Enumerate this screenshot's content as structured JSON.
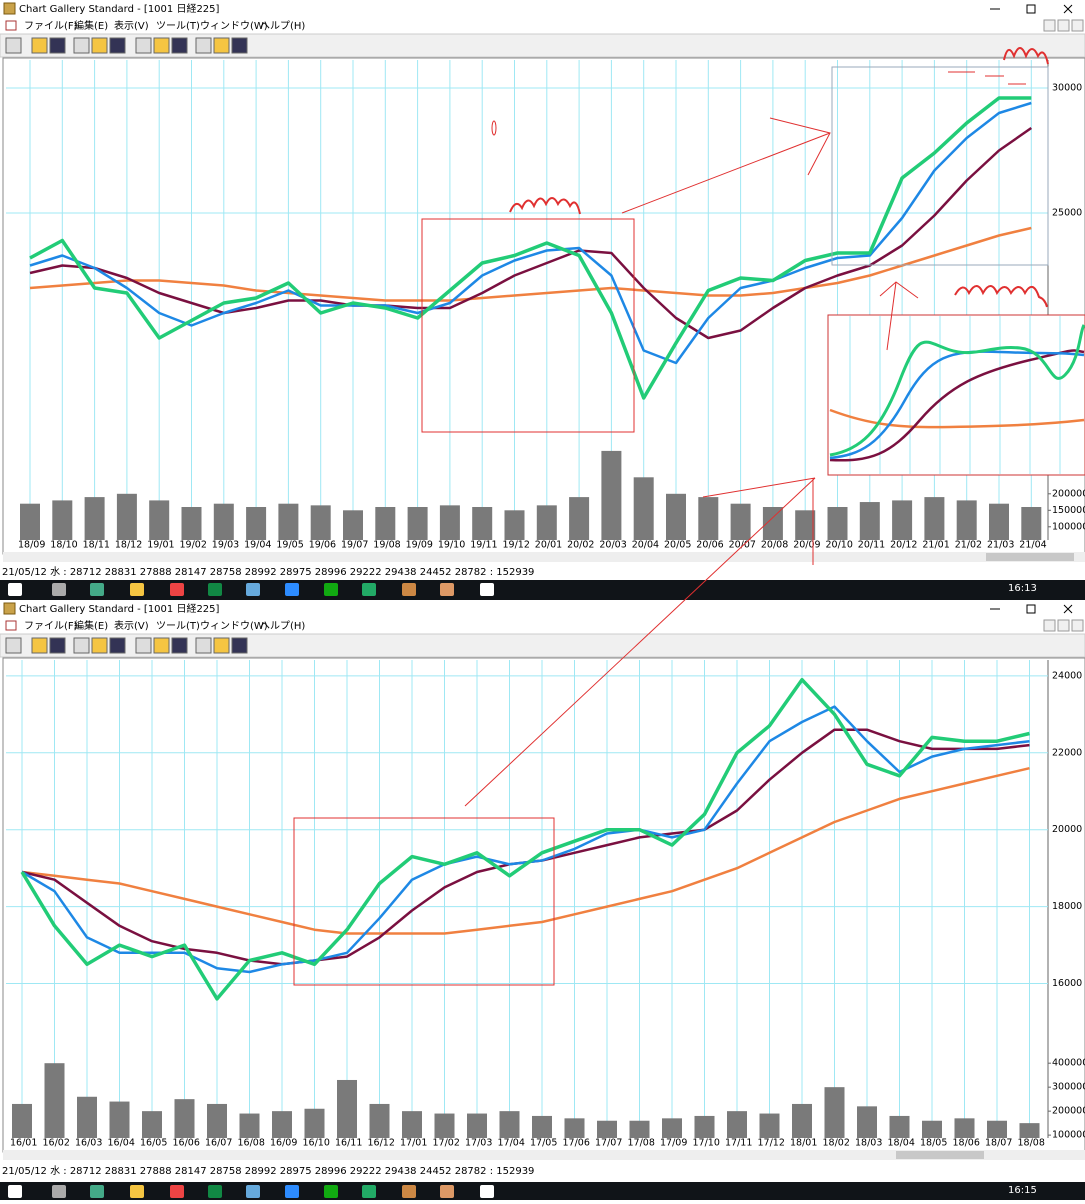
{
  "windows": [
    {
      "title": "Chart Gallery Standard - [1001 日経225]",
      "menu": [
        "ファイル(F)",
        "編集(E)",
        "表示(V)",
        "ツール(T)",
        "ウィンドウ(W)",
        "ヘルプ(H)"
      ],
      "status": "21/05/12 水 : 28712 28831 27888 28147  28758 28992 28975 28996 29222 29438 24452 28782 : 152939",
      "time": "16:13",
      "chart": {
        "type": "line",
        "categories": [
          "18/09",
          "18/10",
          "18/11",
          "18/12",
          "19/01",
          "19/02",
          "19/03",
          "19/04",
          "19/05",
          "19/06",
          "19/07",
          "19/08",
          "19/09",
          "19/10",
          "19/11",
          "19/12",
          "20/01",
          "20/02",
          "20/03",
          "20/04",
          "20/05",
          "20/06",
          "20/07",
          "20/08",
          "20/09",
          "20/10",
          "20/11",
          "20/12",
          "21/01",
          "21/02",
          "21/03",
          "21/04"
        ],
        "series": [
          {
            "color": "#f08040",
            "values": [
              22000,
              22100,
              22200,
              22300,
              22300,
              22200,
              22100,
              21900,
              21800,
              21700,
              21600,
              21500,
              21500,
              21500,
              21600,
              21700,
              21800,
              21900,
              22000,
              21900,
              21800,
              21700,
              21700,
              21800,
              22000,
              22200,
              22500,
              22900,
              23300,
              23700,
              24100,
              24400
            ]
          },
          {
            "color": "#7a1040",
            "values": [
              22600,
              22900,
              22800,
              22400,
              21800,
              21400,
              21000,
              21200,
              21500,
              21500,
              21300,
              21300,
              21200,
              21200,
              21800,
              22500,
              23000,
              23500,
              23400,
              22000,
              20800,
              20000,
              20300,
              21200,
              22000,
              22500,
              22900,
              23700,
              24900,
              26300,
              27500,
              28400
            ]
          },
          {
            "color": "#1e88e5",
            "values": [
              22900,
              23300,
              22800,
              22000,
              21000,
              20500,
              21000,
              21400,
              21900,
              21300,
              21300,
              21300,
              21000,
              21400,
              22500,
              23100,
              23500,
              23600,
              22500,
              19500,
              19000,
              20800,
              22000,
              22300,
              22800,
              23200,
              23300,
              24800,
              26700,
              28000,
              29000,
              29400
            ]
          },
          {
            "color": "#22cc77",
            "values": [
              23200,
              23900,
              22000,
              21800,
              20000,
              20700,
              21400,
              21600,
              22200,
              21000,
              21400,
              21200,
              20800,
              21900,
              23000,
              23300,
              23800,
              23300,
              21000,
              17600,
              19800,
              21900,
              22400,
              22300,
              23100,
              23400,
              23400,
              26400,
              27400,
              28600,
              29600,
              29600
            ]
          }
        ],
        "volume": {
          "color": "#7a7a7a",
          "values": [
            170000,
            180000,
            190000,
            200000,
            180000,
            160000,
            170000,
            160000,
            170000,
            165000,
            150000,
            160000,
            160000,
            165000,
            160000,
            150000,
            165000,
            190000,
            330000,
            250000,
            200000,
            190000,
            170000,
            160000,
            150000,
            160000,
            175000,
            180000,
            190000,
            180000,
            170000,
            160000
          ]
        },
        "ylim": [
          15000,
          31000
        ],
        "yticks": [
          30000,
          25000
        ],
        "vlim": [
          60000,
          360000
        ],
        "vticks": [
          200000,
          150000,
          100000
        ],
        "grid": true
      }
    },
    {
      "title": "Chart Gallery Standard - [1001 日経225]",
      "menu": [
        "ファイル(F)",
        "編集(E)",
        "表示(V)",
        "ツール(T)",
        "ウィンドウ(W)",
        "ヘルプ(H)"
      ],
      "status": "21/05/12 水 : 28712 28831 27888 28147  28758 28992 28975 28996 29222 29438 24452 28782 : 152939",
      "time": "16:15",
      "chart": {
        "type": "line",
        "categories": [
          "16/01",
          "16/02",
          "16/03",
          "16/04",
          "16/05",
          "16/06",
          "16/07",
          "16/08",
          "16/09",
          "16/10",
          "16/11",
          "16/12",
          "17/01",
          "17/02",
          "17/03",
          "17/04",
          "17/05",
          "17/06",
          "17/07",
          "17/08",
          "17/09",
          "17/10",
          "17/11",
          "17/12",
          "18/01",
          "18/02",
          "18/03",
          "18/04",
          "18/05",
          "18/06",
          "18/07",
          "18/08"
        ],
        "series": [
          {
            "color": "#f08040",
            "values": [
              18900,
              18800,
              18700,
              18600,
              18400,
              18200,
              18000,
              17800,
              17600,
              17400,
              17300,
              17300,
              17300,
              17300,
              17400,
              17500,
              17600,
              17800,
              18000,
              18200,
              18400,
              18700,
              19000,
              19400,
              19800,
              20200,
              20500,
              20800,
              21000,
              21200,
              21400,
              21600
            ]
          },
          {
            "color": "#7a1040",
            "values": [
              18900,
              18700,
              18100,
              17500,
              17100,
              16900,
              16800,
              16600,
              16500,
              16600,
              16700,
              17200,
              17900,
              18500,
              18900,
              19100,
              19200,
              19400,
              19600,
              19800,
              19900,
              20000,
              20500,
              21300,
              22000,
              22600,
              22600,
              22300,
              22100,
              22100,
              22100,
              22200
            ]
          },
          {
            "color": "#1e88e5",
            "values": [
              18900,
              18400,
              17200,
              16800,
              16800,
              16800,
              16400,
              16300,
              16500,
              16600,
              16800,
              17700,
              18700,
              19100,
              19300,
              19100,
              19200,
              19500,
              19900,
              20000,
              19800,
              20000,
              21200,
              22300,
              22800,
              23200,
              22300,
              21500,
              21900,
              22100,
              22200,
              22300
            ]
          },
          {
            "color": "#22cc77",
            "values": [
              18900,
              17500,
              16500,
              17000,
              16700,
              17000,
              15600,
              16600,
              16800,
              16500,
              17400,
              18600,
              19300,
              19100,
              19400,
              18800,
              19400,
              19700,
              20000,
              20000,
              19600,
              20400,
              22000,
              22700,
              23900,
              23000,
              21700,
              21400,
              22400,
              22300,
              22300,
              22500
            ]
          }
        ],
        "volume": {
          "color": "#7a7a7a",
          "values": [
            230000,
            400000,
            260000,
            240000,
            200000,
            250000,
            230000,
            190000,
            200000,
            210000,
            330000,
            230000,
            200000,
            190000,
            190000,
            200000,
            180000,
            170000,
            160000,
            160000,
            170000,
            180000,
            200000,
            190000,
            230000,
            300000,
            220000,
            180000,
            160000,
            170000,
            160000,
            150000
          ]
        },
        "ylim": [
          15000,
          24360
        ],
        "yticks": [
          24000,
          22000,
          20000,
          18000,
          16000
        ],
        "vlim": [
          88000,
          430000
        ],
        "vticks": [
          400000,
          300000,
          200000,
          100000
        ],
        "grid": true
      }
    }
  ]
}
